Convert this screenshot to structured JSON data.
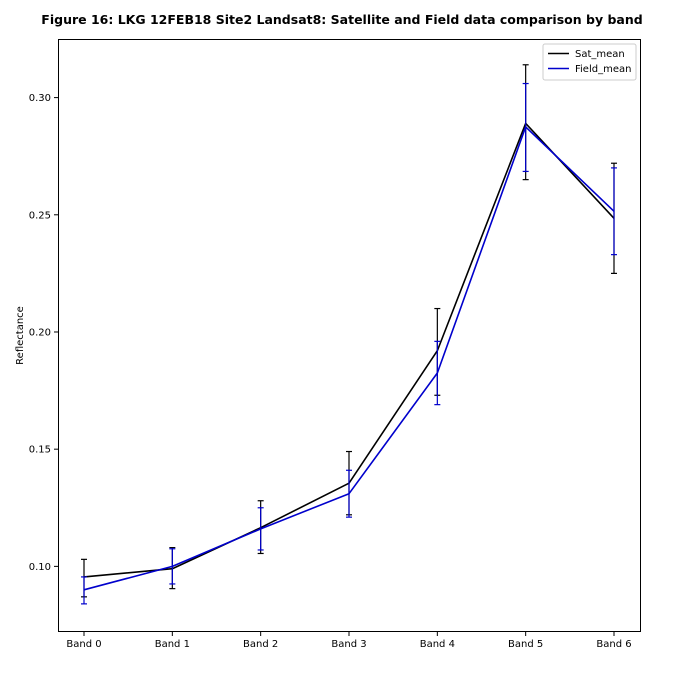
{
  "chart_data": {
    "type": "line",
    "title": "Figure 16: LKG 12FEB18 Site2 Landsat8: Satellite and Field data comparison by band",
    "xlabel": "",
    "ylabel": "Reflectance",
    "categories": [
      "Band 0",
      "Band 1",
      "Band 2",
      "Band 3",
      "Band 4",
      "Band 5",
      "Band 6"
    ],
    "ylim": [
      0.072,
      0.325
    ],
    "yticks": [
      0.1,
      0.15,
      0.2,
      0.25,
      0.3
    ],
    "ytick_labels": [
      "0.10",
      "0.15",
      "0.20",
      "0.25",
      "0.30"
    ],
    "grid": false,
    "legend": "top-right",
    "series": [
      {
        "name": "Sat_mean",
        "color": "#000000",
        "values": [
          0.0955,
          0.099,
          0.1165,
          0.1355,
          0.192,
          0.289,
          0.2485
        ],
        "err_lower": [
          0.087,
          0.0905,
          0.1055,
          0.122,
          0.173,
          0.265,
          0.225
        ],
        "err_upper": [
          0.103,
          0.108,
          0.128,
          0.149,
          0.21,
          0.314,
          0.272
        ]
      },
      {
        "name": "Field_mean",
        "color": "#0000cc",
        "values": [
          0.09,
          0.1,
          0.116,
          0.131,
          0.1825,
          0.2875,
          0.2515
        ],
        "err_lower": [
          0.084,
          0.0925,
          0.107,
          0.121,
          0.169,
          0.2685,
          0.233
        ],
        "err_upper": [
          0.0955,
          0.1075,
          0.125,
          0.141,
          0.196,
          0.306,
          0.27
        ]
      }
    ]
  }
}
